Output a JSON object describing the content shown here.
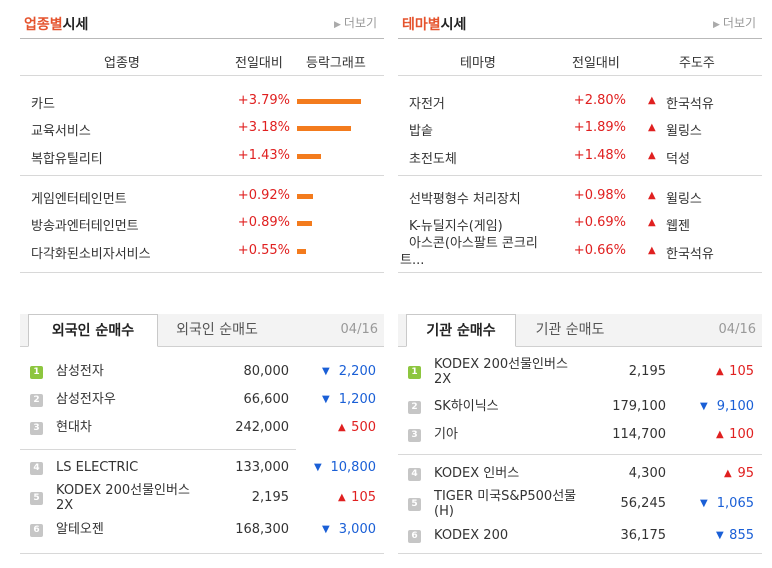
{
  "industry": {
    "title_highlight": "업종별",
    "title_rest": "시세",
    "more": "더보기",
    "headers": [
      "업종명",
      "전일대비",
      "등락그래프"
    ],
    "rows": [
      {
        "name": "카드",
        "change": "+3.79%",
        "pct": 3.79
      },
      {
        "name": "교육서비스",
        "change": "+3.18%",
        "pct": 3.18
      },
      {
        "name": "복합유틸리티",
        "change": "+1.43%",
        "pct": 1.43
      },
      {
        "name": "게임엔터테인먼트",
        "change": "+0.92%",
        "pct": 0.92
      },
      {
        "name": "방송과엔터테인먼트",
        "change": "+0.89%",
        "pct": 0.89
      },
      {
        "name": "다각화된소비자서비스",
        "change": "+0.55%",
        "pct": 0.55
      }
    ]
  },
  "theme": {
    "title_highlight": "테마별",
    "title_rest": "시세",
    "more": "더보기",
    "headers": [
      "테마명",
      "전일대비",
      "주도주"
    ],
    "rows": [
      {
        "name": "자전거",
        "change": "+2.80%",
        "leader": "한국석유"
      },
      {
        "name": "밥솥",
        "change": "+1.89%",
        "leader": "윌링스"
      },
      {
        "name": "초전도체",
        "change": "+1.48%",
        "leader": "덕성"
      },
      {
        "name": "선박평형수 처리장치",
        "change": "+0.98%",
        "leader": "윌링스"
      },
      {
        "name": "K-뉴딜지수(게임)",
        "change": "+0.69%",
        "leader": "웹젠"
      },
      {
        "name": "아스콘(아스팔트 콘크리트...",
        "change": "+0.66%",
        "leader": "한국석유"
      }
    ]
  },
  "foreign": {
    "tab_active": "외국인 순매수",
    "tab_inactive": "외국인 순매도",
    "date": "04/16",
    "rows": [
      {
        "rank": "1",
        "name": "삼성전자",
        "price": "80,000",
        "dir": "down",
        "change": "2,200"
      },
      {
        "rank": "2",
        "name": "삼성전자우",
        "price": "66,600",
        "dir": "down",
        "change": "1,200"
      },
      {
        "rank": "3",
        "name": "현대차",
        "price": "242,000",
        "dir": "up",
        "change": "500"
      },
      {
        "rank": "4",
        "name": "LS ELECTRIC",
        "price": "133,000",
        "dir": "down",
        "change": "10,800"
      },
      {
        "rank": "5",
        "name": "KODEX 200선물인버스2X",
        "price": "2,195",
        "dir": "up",
        "change": "105"
      },
      {
        "rank": "6",
        "name": "알테오젠",
        "price": "168,300",
        "dir": "down",
        "change": "3,000"
      }
    ]
  },
  "institution": {
    "tab_active": "기관 순매수",
    "tab_inactive": "기관 순매도",
    "date": "04/16",
    "rows": [
      {
        "rank": "1",
        "name": "KODEX 200선물인버스2X",
        "price": "2,195",
        "dir": "up",
        "change": "105"
      },
      {
        "rank": "2",
        "name": "SK하이닉스",
        "price": "179,100",
        "dir": "down",
        "change": "9,100"
      },
      {
        "rank": "3",
        "name": "기아",
        "price": "114,700",
        "dir": "up",
        "change": "100"
      },
      {
        "rank": "4",
        "name": "KODEX 인버스",
        "price": "4,300",
        "dir": "up",
        "change": "95"
      },
      {
        "rank": "5",
        "name": "TIGER 미국S&P500선물(H)",
        "price": "56,245",
        "dir": "down",
        "change": "1,065"
      },
      {
        "rank": "6",
        "name": "KODEX 200",
        "price": "36,175",
        "dir": "down",
        "change": "855"
      }
    ]
  },
  "colors": {
    "accent": "#e5532d",
    "up": "#e02020",
    "down": "#1a5fd6",
    "bar": "#f37b1d"
  }
}
